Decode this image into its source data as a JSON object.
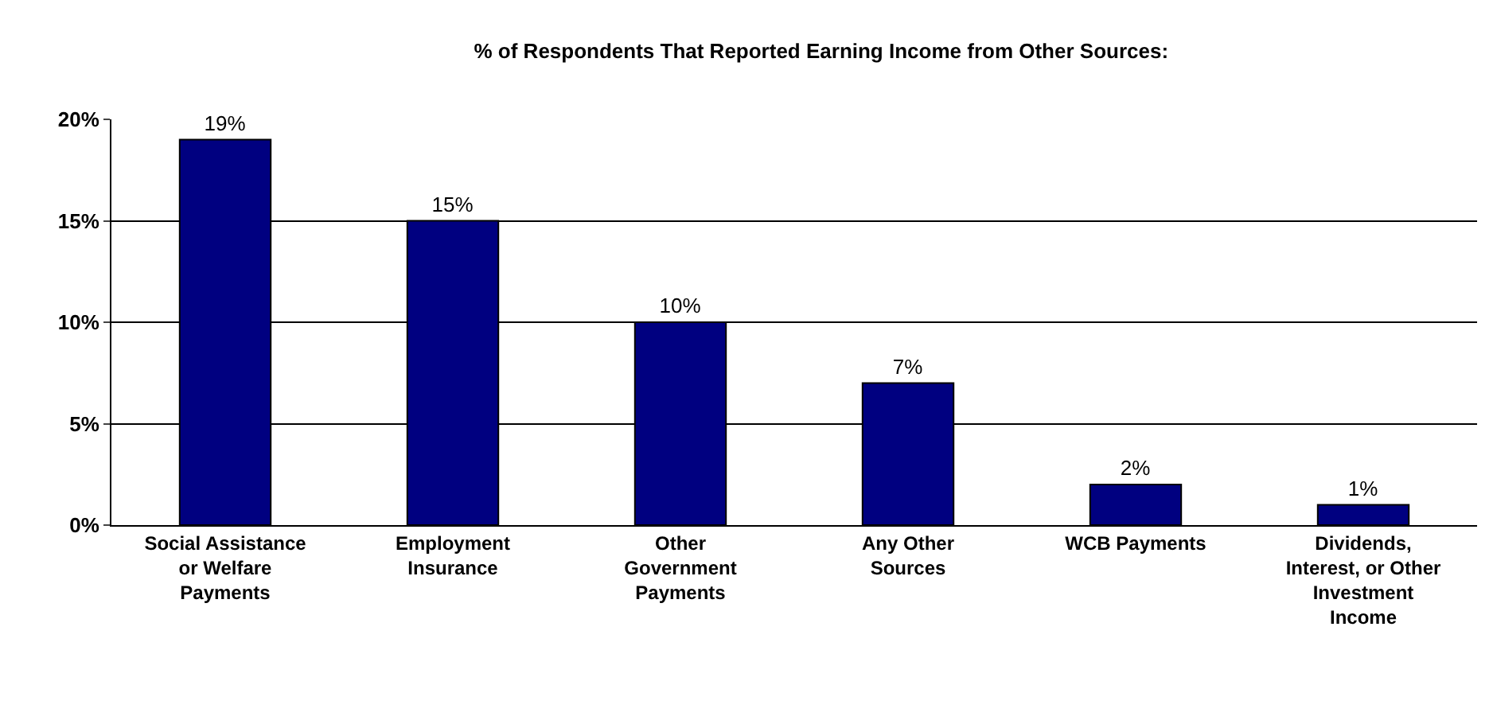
{
  "chart_data": {
    "type": "bar",
    "title": "% of Respondents That Reported Earning Income from Other Sources:",
    "categories": [
      "Social Assistance\nor Welfare\nPayments",
      "Employment\nInsurance",
      "Other\nGovernment\nPayments",
      "Any Other\nSources",
      "WCB Payments",
      "Dividends,\nInterest, or Other\nInvestment\nIncome"
    ],
    "values": [
      19,
      15,
      10,
      7,
      2,
      1
    ],
    "color": "#000080",
    "ylim": [
      0,
      20
    ],
    "yticks": [
      {
        "value": 0,
        "label": "0%"
      },
      {
        "value": 5,
        "label": "5%"
      },
      {
        "value": 10,
        "label": "10%"
      },
      {
        "value": 15,
        "label": "15%"
      },
      {
        "value": 20,
        "label": "20%"
      }
    ],
    "value_labels": [
      "19%",
      "15%",
      "10%",
      "7%",
      "2%",
      "1%"
    ],
    "grid": "y",
    "legend": false
  }
}
